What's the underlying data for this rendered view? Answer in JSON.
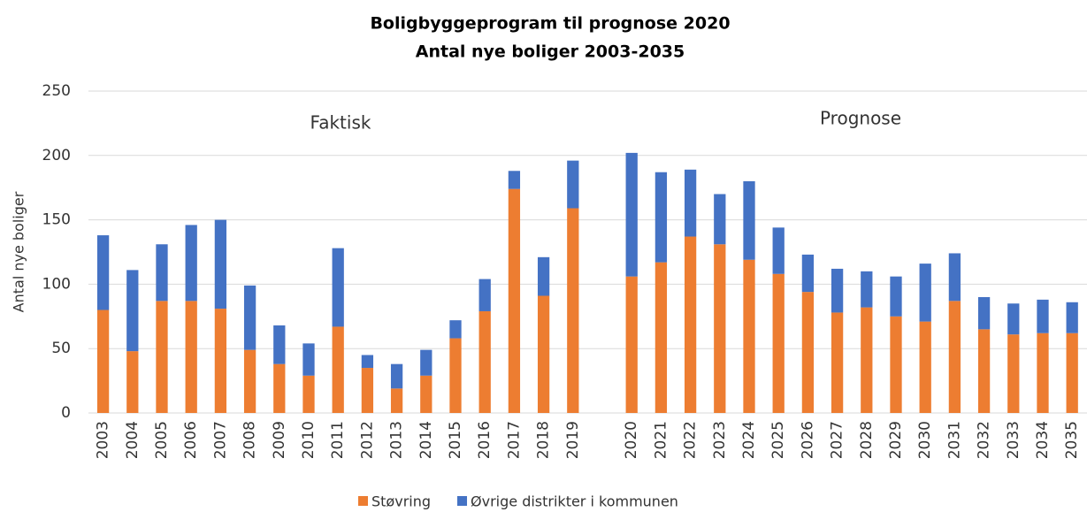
{
  "chart_data": {
    "type": "stacked_bar",
    "title": "Boligbyggeprogram  til prognose 2020",
    "subtitle": "Antal nye boliger 2003-2035",
    "y_label": "Antal nye boliger",
    "annotations": [
      "Faktisk",
      "Prognose"
    ],
    "categories": [
      "2003",
      "2004",
      "2005",
      "2006",
      "2007",
      "2008",
      "2009",
      "2010",
      "2011",
      "2012",
      "2013",
      "2014",
      "2015",
      "2016",
      "2017",
      "2018",
      "2019",
      null,
      "2020",
      "2021",
      "2022",
      "2023",
      "2024",
      "2025",
      "2026",
      "2027",
      "2028",
      "2029",
      "2030",
      "2031",
      "2032",
      "2033",
      "2034",
      "2035"
    ],
    "series": [
      {
        "name": "Støvring",
        "color": "#ed7d31",
        "values": [
          80,
          48,
          87,
          87,
          81,
          49,
          38,
          29,
          67,
          35,
          19,
          29,
          58,
          79,
          174,
          91,
          159,
          null,
          106,
          117,
          137,
          131,
          119,
          108,
          94,
          78,
          82,
          75,
          71,
          87,
          65,
          61,
          62,
          62
        ]
      },
      {
        "name": "Øvrige distrikter i kommunen",
        "color": "#4472c4",
        "values": [
          58,
          63,
          44,
          59,
          69,
          50,
          30,
          25,
          61,
          10,
          19,
          20,
          14,
          25,
          14,
          30,
          37,
          null,
          96,
          70,
          52,
          39,
          61,
          36,
          29,
          34,
          28,
          31,
          45,
          37,
          25,
          24,
          26,
          24
        ]
      }
    ],
    "ylim": [
      0,
      250
    ],
    "yticks": [
      0,
      50,
      100,
      150,
      200,
      250
    ],
    "grid": true,
    "legend": "bottom"
  }
}
